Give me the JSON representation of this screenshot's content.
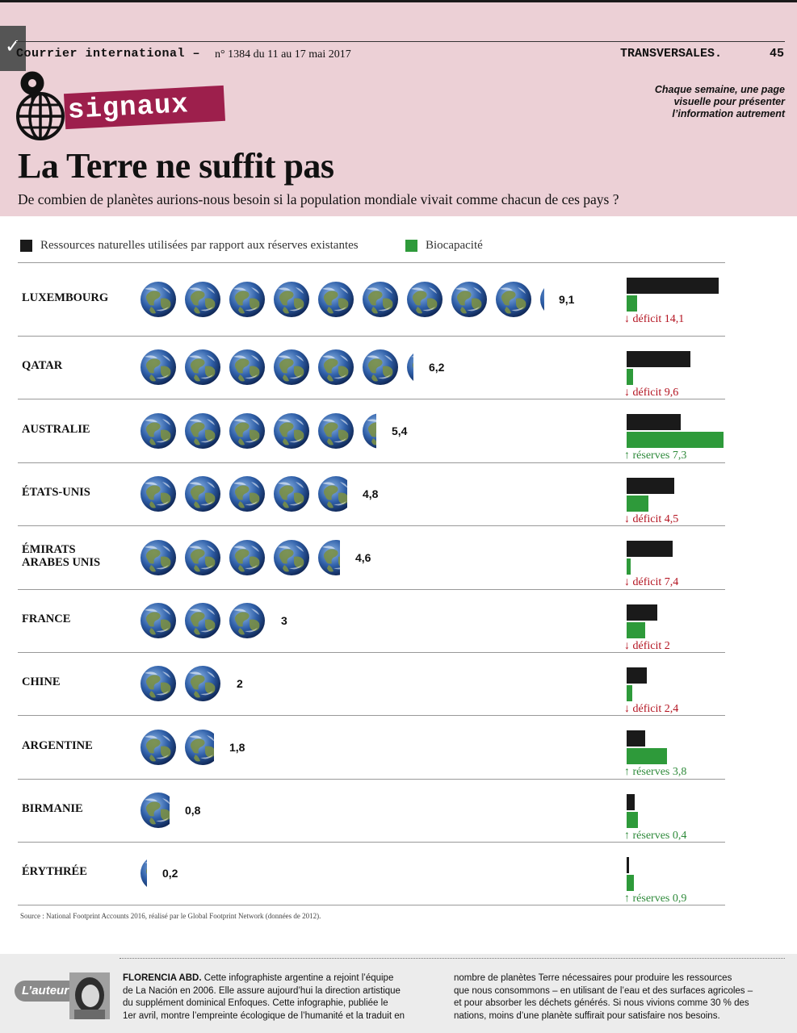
{
  "header": {
    "publication": "Courrier international –",
    "issue": "n° 1384 du 11 au 17 mai 2017",
    "section": "TRANSVERSALES.",
    "page_number": "45",
    "logo_word": "signaux",
    "tagline_lines": [
      "Chaque semaine, une page",
      "visuelle pour présenter",
      "l’information autrement"
    ],
    "title": "La Terre ne suffit pas",
    "subtitle": "De combien de planètes aurions-nous besoin si la population mondiale vivait comme chacun de ces pays ?"
  },
  "legend": {
    "resources_label": "Ressources naturelles utilisées par rapport aux réserves existantes",
    "biocapacity_label": "Biocapacité",
    "resources_color": "#1a1a1a",
    "biocapacity_color": "#2e9a3a"
  },
  "colors": {
    "deficit": "#b3121f",
    "reserves": "#2e8a3a",
    "header_band": "#ecd0d6",
    "logo_band": "#9d1f4c"
  },
  "chart_data": {
    "type": "bar",
    "unit": "planètes",
    "rows": [
      {
        "country": "LUXEMBOURG",
        "planets": 9.1,
        "planets_label": "9,1",
        "footprint_bar": 1.0,
        "biocapacity_bar": 0.11,
        "balance_type": "deficit",
        "balance_label": "déficit 14,1"
      },
      {
        "country": "QATAR",
        "planets": 6.2,
        "planets_label": "6,2",
        "footprint_bar": 0.69,
        "biocapacity_bar": 0.07,
        "balance_type": "deficit",
        "balance_label": "déficit 9,6"
      },
      {
        "country": "AUSTRALIE",
        "planets": 5.4,
        "planets_label": "5,4",
        "footprint_bar": 0.59,
        "biocapacity_bar": 1.05,
        "balance_type": "reserves",
        "balance_label": "réserves 7,3"
      },
      {
        "country": "ÉTATS-UNIS",
        "planets": 4.8,
        "planets_label": "4,8",
        "footprint_bar": 0.52,
        "biocapacity_bar": 0.24,
        "balance_type": "deficit",
        "balance_label": "déficit 4,5"
      },
      {
        "country": "ÉMIRATS\nARABES UNIS",
        "planets": 4.6,
        "planets_label": "4,6",
        "footprint_bar": 0.5,
        "biocapacity_bar": 0.04,
        "balance_type": "deficit",
        "balance_label": "déficit 7,4"
      },
      {
        "country": "FRANCE",
        "planets": 3,
        "planets_label": "3",
        "footprint_bar": 0.33,
        "biocapacity_bar": 0.2,
        "balance_type": "deficit",
        "balance_label": "déficit 2"
      },
      {
        "country": "CHINE",
        "planets": 2,
        "planets_label": "2",
        "footprint_bar": 0.22,
        "biocapacity_bar": 0.06,
        "balance_type": "deficit",
        "balance_label": "déficit 2,4"
      },
      {
        "country": "ARGENTINE",
        "planets": 1.8,
        "planets_label": "1,8",
        "footprint_bar": 0.2,
        "biocapacity_bar": 0.44,
        "balance_type": "reserves",
        "balance_label": "réserves 3,8"
      },
      {
        "country": "BIRMANIE",
        "planets": 0.8,
        "planets_label": "0,8",
        "footprint_bar": 0.09,
        "biocapacity_bar": 0.12,
        "balance_type": "reserves",
        "balance_label": "réserves 0,4"
      },
      {
        "country": "ÉRYTHRÉE",
        "planets": 0.2,
        "planets_label": "0,2",
        "footprint_bar": 0.02,
        "biocapacity_bar": 0.08,
        "balance_type": "reserves",
        "balance_label": "réserves 0,9"
      }
    ]
  },
  "source": "Source : National Footprint Accounts 2016, réalisé par le Global Footprint Network (données de 2012).",
  "footer": {
    "badge": "L’auteur",
    "author_name": "FLORENCIA ABD.",
    "col1_lines": [
      " Cette infographiste argentine a rejoint l’équipe",
      "de La Nación en 2006. Elle assure aujourd’hui la direction artistique",
      "du supplément dominical Enfoques. Cette infographie, publiée le",
      "1er avril, montre l’empreinte écologique de l’humanité et la traduit en"
    ],
    "col2_lines": [
      "nombre de planètes Terre nécessaires pour produire les ressources",
      "que nous consommons – en utilisant de l’eau et des surfaces agricoles –",
      "et pour absorber les déchets générés. Si nous vivions comme 30 % des",
      "nations, moins d’une planète suffirait pour satisfaire nos besoins."
    ]
  }
}
